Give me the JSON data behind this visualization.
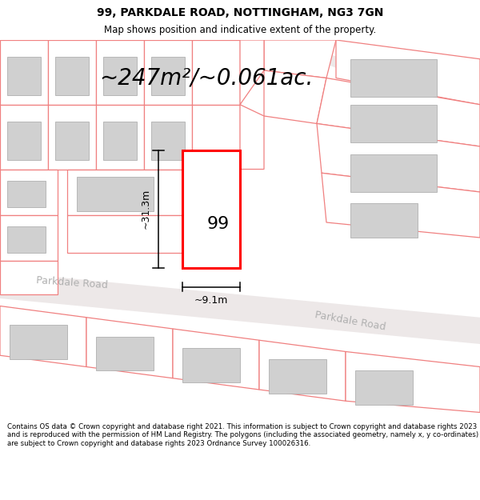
{
  "title": "99, PARKDALE ROAD, NOTTINGHAM, NG3 7GN",
  "subtitle": "Map shows position and indicative extent of the property.",
  "area_text": "~247m²/~0.061ac.",
  "label_99": "99",
  "dim_height": "~31.3m",
  "dim_width": "~9.1m",
  "road_label_left": "Parkdale Road",
  "road_label_right": "Parkdale Road",
  "footer": "Contains OS data © Crown copyright and database right 2021. This information is subject to Crown copyright and database rights 2023 and is reproduced with the permission of HM Land Registry. The polygons (including the associated geometry, namely x, y co-ordinates) are subject to Crown copyright and database rights 2023 Ordnance Survey 100026316.",
  "bg_color": "#ffffff",
  "map_bg": "#ffffff",
  "plot_color": "#ff0000",
  "parcel_edge": "#f08080",
  "building_fill": "#d0d0d0",
  "building_outline": "#b0b0b0",
  "road_fill": "#ede8e8",
  "road_label_color": "#b0b0b0",
  "title_fontsize": 10,
  "subtitle_fontsize": 8.5,
  "area_fontsize": 20,
  "label_fontsize": 16,
  "dim_fontsize": 9,
  "road_fontsize": 9,
  "footer_fontsize": 6.2
}
